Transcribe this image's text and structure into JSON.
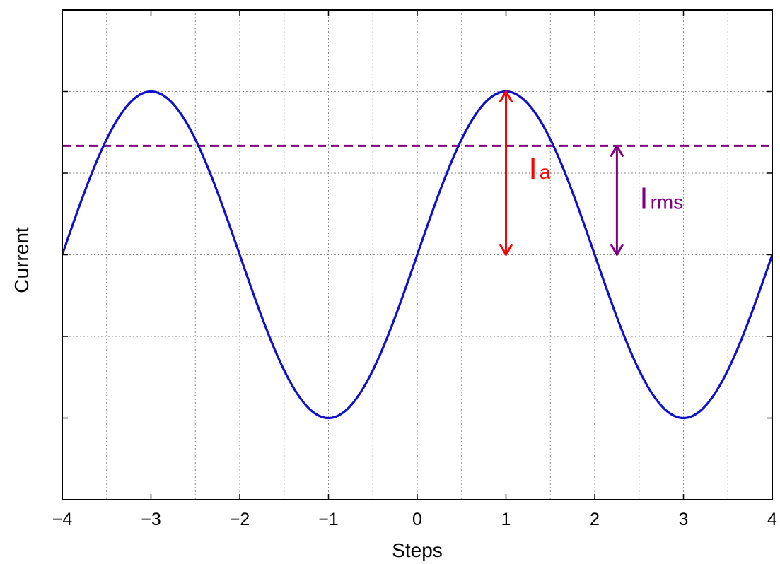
{
  "chart_data": {
    "type": "line",
    "xlabel": "Steps",
    "ylabel": "Current",
    "xlim": [
      -4,
      4
    ],
    "ylim": [
      -1.5,
      1.5
    ],
    "x_ticks": [
      -4,
      -3,
      -2,
      -1,
      0,
      1,
      2,
      3,
      4
    ],
    "x_tick_labels": [
      "−4",
      "−3",
      "−2",
      "−1",
      "0",
      "1",
      "2",
      "3",
      "4"
    ],
    "x_minor_gridlines": [
      -3.5,
      -2.5,
      -1.5,
      -0.5,
      0.5,
      1.5,
      2.5,
      3.5
    ],
    "y_ticks": [
      -1.5,
      -1,
      -0.5,
      0,
      0.5,
      1,
      1.5
    ],
    "y_tick_labels_shown": false,
    "grid": true,
    "series": [
      {
        "function": "sin(pi*x/2)",
        "amplitude": 1,
        "period": 4,
        "color": "#1010c8",
        "style": "solid"
      }
    ],
    "reference_lines": [
      {
        "orientation": "horizontal",
        "y": 0.667,
        "color": "#800080",
        "style": "dashed"
      }
    ],
    "annotations": [
      {
        "label_main": "I",
        "label_sub": "a",
        "color": "#ff0000",
        "x": 1,
        "y_from": 0,
        "y_to": 1,
        "type": "double-arrow"
      },
      {
        "label_main": "I",
        "label_sub": "rms",
        "color": "#800080",
        "x": 2.25,
        "y_from": 0,
        "y_to": 0.667,
        "type": "double-arrow"
      }
    ]
  }
}
